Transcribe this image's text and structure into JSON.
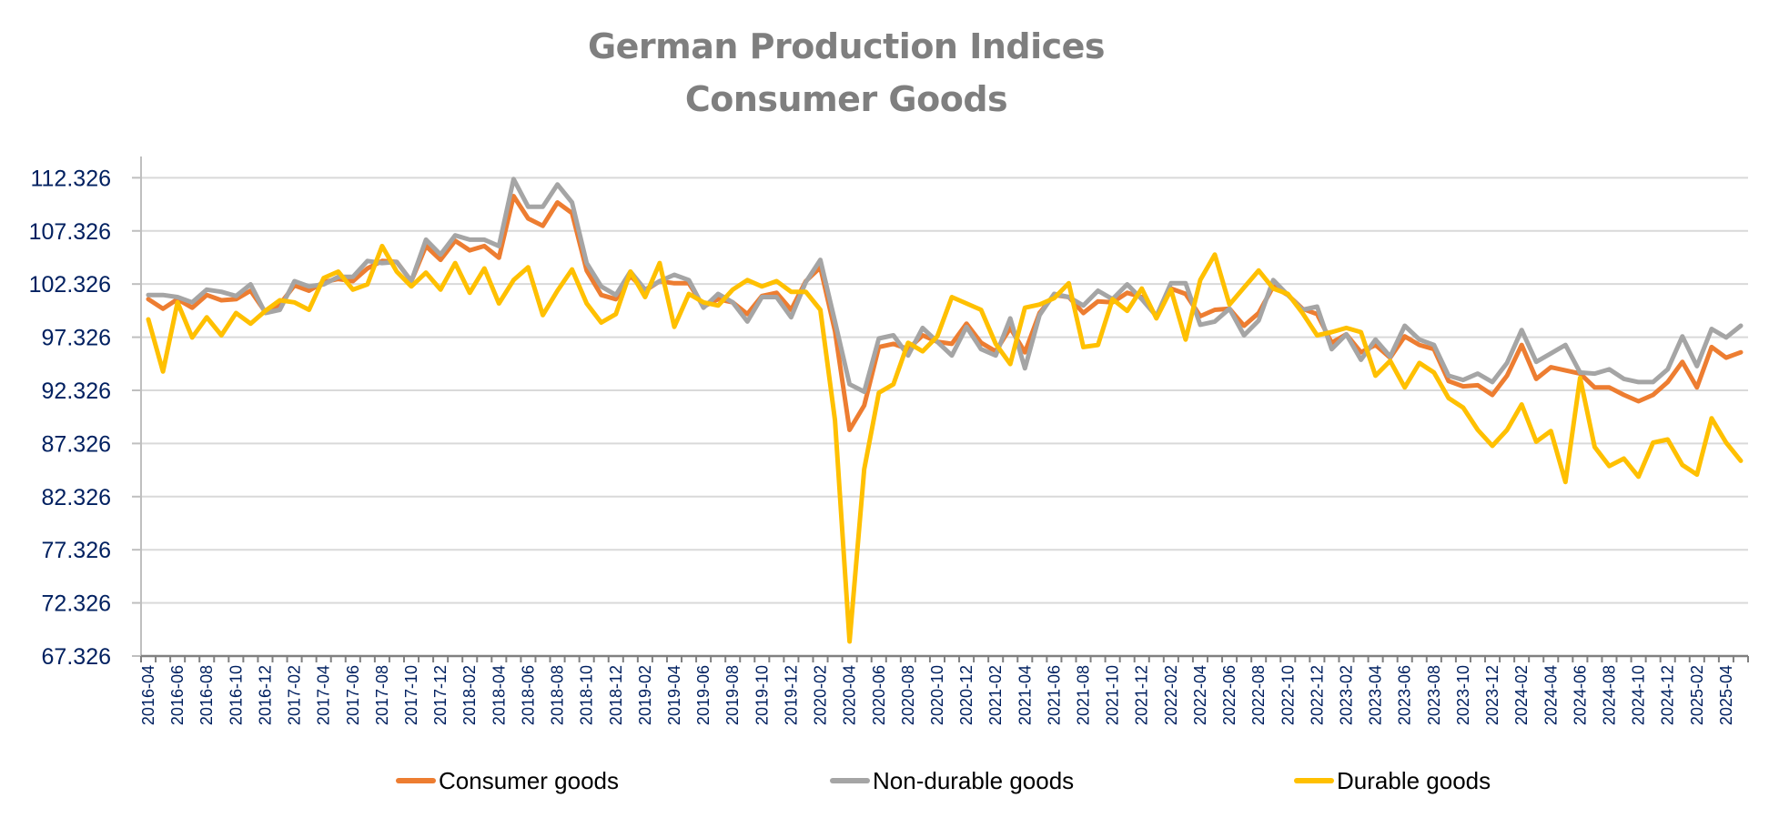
{
  "chart_data": {
    "type": "line",
    "title": [
      "German Production Indices",
      "Consumer Goods"
    ],
    "xlabel": "",
    "ylabel": "",
    "ylim": [
      67.326,
      114.326
    ],
    "yticks": [
      "67.326",
      "72.326",
      "77.326",
      "82.326",
      "87.326",
      "92.326",
      "97.326",
      "102.326",
      "107.326",
      "112.326"
    ],
    "ytick_values": [
      67.326,
      72.326,
      77.326,
      82.326,
      87.326,
      92.326,
      97.326,
      102.326,
      107.326,
      112.326
    ],
    "grid": "horizontal",
    "legend_position": "bottom",
    "x_start": "2016-04",
    "x_end": "2025-05",
    "x_label_every": 2,
    "series": [
      {
        "name": "Consumer goods",
        "color": "#ED7D31",
        "values": [
          100.9,
          100.0,
          100.9,
          100.1,
          101.3,
          100.8,
          100.9,
          101.7,
          99.7,
          100.4,
          102.2,
          101.7,
          102.5,
          102.8,
          102.6,
          103.8,
          104.5,
          104.4,
          102.6,
          105.9,
          104.6,
          106.4,
          105.5,
          105.9,
          104.8,
          110.6,
          108.5,
          107.8,
          110.0,
          109.0,
          103.6,
          101.3,
          100.9,
          103.1,
          101.7,
          102.6,
          102.4,
          102.4,
          100.2,
          100.9,
          100.6,
          99.5,
          101.2,
          101.5,
          99.9,
          102.6,
          103.9,
          97.9,
          88.6,
          90.9,
          96.4,
          96.7,
          96.2,
          97.5,
          96.9,
          96.7,
          98.6,
          96.8,
          96.0,
          98.2,
          95.9,
          99.6,
          101.3,
          101.1,
          99.6,
          100.7,
          100.6,
          101.5,
          101.1,
          99.3,
          101.9,
          101.4,
          99.3,
          99.9,
          100.0,
          98.4,
          99.6,
          102.1,
          101.3,
          100.0,
          99.5,
          96.8,
          97.6,
          95.9,
          96.6,
          95.4,
          97.4,
          96.6,
          96.2,
          93.2,
          92.7,
          92.8,
          91.9,
          93.7,
          96.6,
          93.4,
          94.5,
          94.2,
          93.9,
          92.6,
          92.6,
          91.9,
          91.3,
          91.9,
          93.1,
          95.0,
          92.6,
          96.4,
          95.4,
          95.9
        ]
      },
      {
        "name": "Non-durable goods",
        "color": "#A5A5A5",
        "values": [
          101.3,
          101.3,
          101.1,
          100.6,
          101.8,
          101.6,
          101.2,
          102.3,
          99.6,
          99.9,
          102.6,
          102.1,
          102.3,
          103.0,
          103.0,
          104.5,
          104.3,
          104.4,
          102.6,
          106.5,
          105.1,
          106.9,
          106.5,
          106.5,
          105.9,
          112.2,
          109.6,
          109.6,
          111.7,
          110.0,
          104.3,
          102.1,
          101.3,
          103.5,
          101.8,
          102.6,
          103.2,
          102.7,
          100.1,
          101.4,
          100.6,
          98.8,
          101.1,
          101.1,
          99.2,
          102.5,
          104.6,
          98.8,
          92.9,
          92.2,
          97.2,
          97.5,
          95.6,
          98.2,
          96.9,
          95.6,
          98.3,
          96.2,
          95.6,
          99.1,
          94.4,
          99.4,
          101.4,
          101.1,
          100.3,
          101.7,
          100.9,
          102.3,
          100.9,
          99.3,
          102.4,
          102.4,
          98.5,
          98.8,
          100.0,
          97.5,
          98.9,
          102.7,
          101.3,
          99.9,
          100.2,
          96.2,
          97.6,
          95.2,
          97.1,
          95.5,
          98.4,
          97.1,
          96.6,
          93.7,
          93.3,
          93.9,
          93.1,
          94.9,
          98.0,
          95.0,
          95.8,
          96.6,
          94.0,
          93.9,
          94.3,
          93.4,
          93.1,
          93.1,
          94.3,
          97.4,
          94.6,
          98.1,
          97.3,
          98.4
        ]
      },
      {
        "name": "Durable goods",
        "color": "#FFC000",
        "values": [
          99.0,
          94.1,
          100.6,
          97.3,
          99.2,
          97.5,
          99.6,
          98.6,
          99.8,
          100.8,
          100.6,
          99.9,
          102.9,
          103.5,
          101.8,
          102.3,
          105.9,
          103.5,
          102.1,
          103.4,
          101.8,
          104.3,
          101.5,
          103.8,
          100.5,
          102.7,
          103.9,
          99.4,
          101.7,
          103.7,
          100.5,
          98.7,
          99.5,
          103.5,
          101.1,
          104.3,
          98.3,
          101.4,
          100.6,
          100.3,
          101.8,
          102.7,
          102.1,
          102.6,
          101.6,
          101.6,
          99.9,
          89.5,
          68.7,
          84.9,
          92.1,
          92.9,
          96.8,
          96.0,
          97.4,
          101.1,
          100.5,
          99.9,
          96.7,
          94.8,
          100.1,
          100.4,
          101.0,
          102.4,
          96.4,
          96.6,
          100.9,
          99.8,
          101.9,
          99.1,
          101.8,
          97.1,
          102.7,
          105.1,
          100.4,
          102.0,
          103.6,
          101.9,
          101.4,
          99.6,
          97.5,
          97.8,
          98.2,
          97.8,
          93.7,
          95.1,
          92.6,
          94.9,
          94.0,
          91.6,
          90.7,
          88.6,
          87.1,
          88.6,
          91.0,
          87.5,
          88.5,
          83.7,
          93.5,
          87.0,
          85.2,
          85.9,
          84.2,
          87.4,
          87.7,
          85.3,
          84.4,
          89.7,
          87.4,
          85.7
        ]
      }
    ]
  },
  "legend": {
    "items": [
      {
        "label": "Consumer goods",
        "color": "#ED7D31"
      },
      {
        "label": "Non-durable goods",
        "color": "#A5A5A5"
      },
      {
        "label": "Durable goods",
        "color": "#FFC000"
      }
    ]
  },
  "colors": {
    "title": "#7F7F7F",
    "axis_labels": "#002060",
    "gridline": "#D9D9D9",
    "axis": "#BFBFBF"
  }
}
